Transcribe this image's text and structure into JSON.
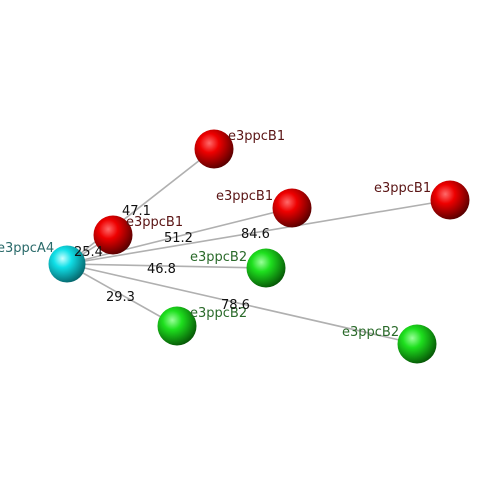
{
  "center": {
    "label": "e3ppcA4"
  },
  "nodes": [
    {
      "label": "e3ppcB1",
      "distance": 47.1
    },
    {
      "label": "e3ppcB1",
      "distance": 51.2
    },
    {
      "label": "e3ppcB1",
      "distance": 84.6
    },
    {
      "label": "e3ppcB1",
      "distance": 25.4
    },
    {
      "label": "e3ppcB2",
      "distance": 46.8
    },
    {
      "label": "e3ppcB2",
      "distance": 29.3
    },
    {
      "label": "e3ppcB2",
      "distance": 78.6
    }
  ]
}
